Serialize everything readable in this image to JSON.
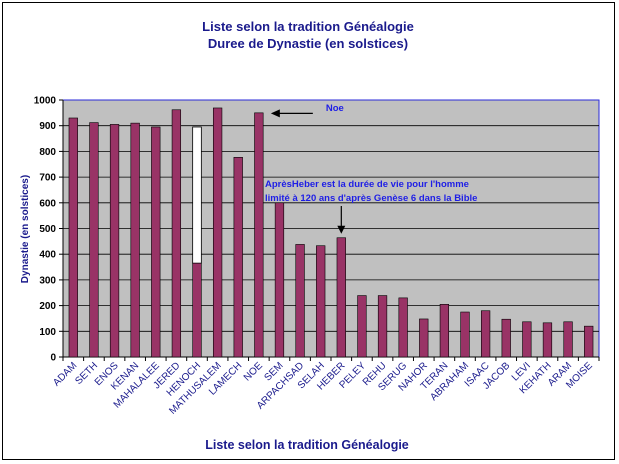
{
  "chart_data": {
    "type": "bar",
    "title": "Liste selon la tradition Généalogie",
    "subtitle": "Duree de Dynastie (en solstices)",
    "ylabel": "Dynastie (en solstices)",
    "footer": "Liste selon la tradition Généalogie",
    "ylim": [
      0,
      1000
    ],
    "yticks": [
      0,
      100,
      200,
      300,
      400,
      500,
      600,
      700,
      800,
      900,
      1000
    ],
    "grid": true,
    "categories": [
      "ADAM",
      "SETH",
      "ENOS",
      "KENAN",
      "MAHALALEE",
      "JERED",
      "HENOCH",
      "MATHUSALEM",
      "LAMECH",
      "NOE",
      "SEM",
      "ARPACHSAD",
      "SELAH",
      "HEBER",
      "PELEY",
      "REHU",
      "SERUG",
      "NAHOR",
      "TERAN",
      "ABRAHAM",
      "ISAAC",
      "JACOB",
      "LEVI",
      "KEHATH",
      "ARAM",
      "MOISE"
    ],
    "values": [
      930,
      912,
      905,
      910,
      895,
      962,
      365,
      969,
      777,
      950,
      600,
      438,
      433,
      464,
      239,
      239,
      230,
      148,
      205,
      175,
      180,
      147,
      137,
      133,
      137,
      120
    ],
    "highlight": {
      "category": "HENOCH",
      "top": 895,
      "fill": "#ffffff"
    },
    "annotations": [
      {
        "text": "Noe",
        "target": "NOE",
        "value": 950
      },
      {
        "lines": [
          "AprèsHeber est la durée de vie pour l'homme",
          "limité à 120 ans d'après Genèse 6 dans la Bible"
        ],
        "target": "HEBER",
        "value": 464
      }
    ],
    "colors": {
      "bar": "#993366",
      "plot_bg": "#c0c0c0",
      "plot_border": "#2a2ad9",
      "title": "#1a1a8c",
      "annotation": "#1e1ee6"
    }
  }
}
